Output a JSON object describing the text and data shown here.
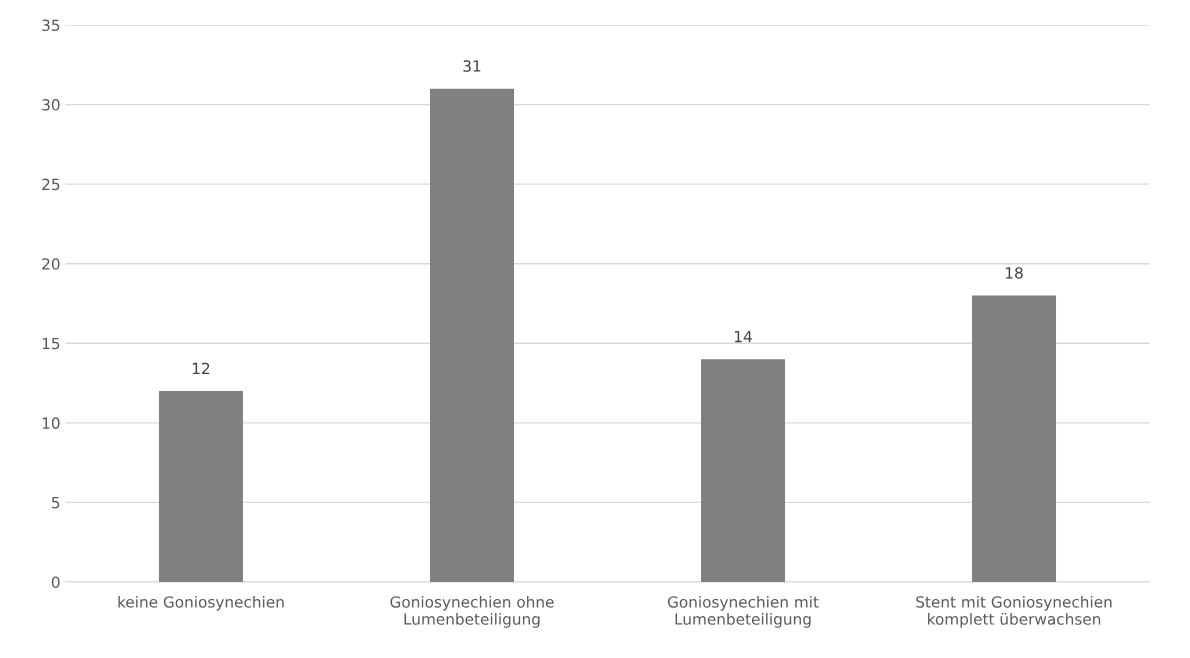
{
  "chart_data": {
    "type": "bar",
    "categories": [
      "keine Goniosynechien",
      "Goniosynechien ohne\nLumenbeteiligung",
      "Goniosynechien mit\nLumenbeteiligung",
      "Stent mit Goniosynechien\nkomplett überwachsen"
    ],
    "values": [
      12,
      31,
      14,
      18
    ],
    "color": "#808080",
    "ylim": [
      0,
      35
    ],
    "yticks": [
      0,
      5,
      10,
      15,
      20,
      25,
      30,
      35
    ],
    "grid": "y",
    "data_labels": true
  }
}
